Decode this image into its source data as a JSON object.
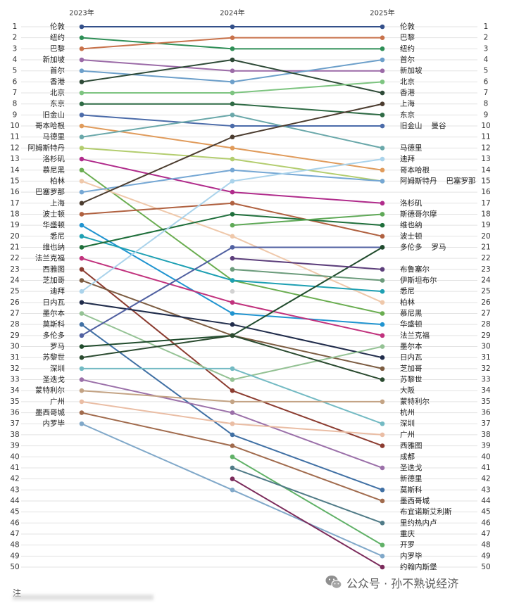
{
  "chart_data": {
    "type": "line",
    "x": [
      "2023年",
      "2024年",
      "2025年"
    ],
    "ranks": [
      1,
      2,
      3,
      4,
      5,
      6,
      7,
      8,
      9,
      10,
      11,
      12,
      13,
      14,
      15,
      16,
      17,
      18,
      19,
      20,
      21,
      22,
      23,
      24,
      25,
      26,
      27,
      28,
      29,
      30,
      31,
      32,
      33,
      34,
      35,
      36,
      37,
      38,
      39,
      40,
      41,
      42,
      43,
      44,
      45,
      46,
      47,
      48,
      49,
      50
    ],
    "ylim": [
      1,
      50
    ],
    "y_inverted": true,
    "grid": true,
    "left_labels": [
      "伦敦",
      "纽约",
      "巴黎",
      "新加坡",
      "首尔",
      "香港",
      "北京",
      "东京",
      "旧金山",
      "哥本哈根",
      "马德里",
      "阿姆斯特丹",
      "洛杉矶",
      "慕尼黑",
      "柏林",
      "巴塞罗那",
      "上海",
      "波士顿",
      "华盛顿",
      "悉尼",
      "维也纳",
      "法兰克福",
      "西雅图",
      "芝加哥",
      "迪拜",
      "日内瓦",
      "墨尔本",
      "莫斯科",
      "多伦多",
      "罗马",
      "苏黎世",
      "深圳",
      "圣迭戈",
      "蒙特利尔",
      "广州",
      "墨西哥城",
      "内罗毕",
      "",
      "",
      "",
      "",
      "",
      "",
      "",
      "",
      "",
      "",
      "",
      "",
      ""
    ],
    "right_labels": [
      [
        "伦敦"
      ],
      [
        "巴黎"
      ],
      [
        "纽约"
      ],
      [
        "首尔"
      ],
      [
        "新加坡"
      ],
      [
        "北京"
      ],
      [
        "香港"
      ],
      [
        "上海"
      ],
      [
        "东京"
      ],
      [
        "旧金山",
        "曼谷"
      ],
      [],
      [
        "马德里"
      ],
      [
        "迪拜"
      ],
      [
        "哥本哈根"
      ],
      [
        "阿姆斯特丹",
        "巴塞罗那"
      ],
      [],
      [
        "洛杉矶"
      ],
      [
        "斯德哥尔摩"
      ],
      [
        "维也纳"
      ],
      [
        "波士顿"
      ],
      [
        "多伦多",
        "罗马"
      ],
      [],
      [
        "布鲁塞尔"
      ],
      [
        "伊斯坦布尔"
      ],
      [
        "悉尼"
      ],
      [
        "柏林"
      ],
      [
        "慕尼黑"
      ],
      [
        "华盛顿"
      ],
      [
        "法兰克福"
      ],
      [
        "墨尔本"
      ],
      [
        "日内瓦"
      ],
      [
        "芝加哥"
      ],
      [
        "苏黎世"
      ],
      [
        "大阪"
      ],
      [
        "蒙特利尔"
      ],
      [
        "杭州"
      ],
      [
        "深圳"
      ],
      [
        "广州"
      ],
      [
        "西雅图"
      ],
      [
        "成都"
      ],
      [
        "圣迭戈"
      ],
      [
        "新德里"
      ],
      [
        "莫斯科"
      ],
      [
        "墨西哥城"
      ],
      [
        "布宜诺斯艾利斯"
      ],
      [
        "里约热内卢"
      ],
      [
        "重庆"
      ],
      [
        "开罗"
      ],
      [
        "内罗毕"
      ],
      [
        "约翰内斯堡"
      ]
    ],
    "series": [
      {
        "name": "伦敦",
        "color": "#34508a",
        "values": [
          1,
          1,
          1
        ]
      },
      {
        "name": "纽约",
        "color": "#2f8f57",
        "values": [
          2,
          3,
          3
        ]
      },
      {
        "name": "巴黎",
        "color": "#c8724b",
        "values": [
          3,
          2,
          2
        ]
      },
      {
        "name": "新加坡",
        "color": "#9b6aa7",
        "values": [
          4,
          5,
          5
        ]
      },
      {
        "name": "首尔",
        "color": "#6c9fca",
        "values": [
          5,
          6,
          4
        ]
      },
      {
        "name": "香港",
        "color": "#2e4a37",
        "values": [
          6,
          4,
          7
        ]
      },
      {
        "name": "北京",
        "color": "#7dc480",
        "values": [
          7,
          7,
          6
        ]
      },
      {
        "name": "东京",
        "color": "#2f6b45",
        "values": [
          8,
          8,
          9
        ]
      },
      {
        "name": "旧金山",
        "color": "#4b6ba9",
        "values": [
          9,
          10,
          10
        ]
      },
      {
        "name": "哥本哈根",
        "color": "#e09b5b",
        "values": [
          10,
          12,
          14
        ]
      },
      {
        "name": "马德里",
        "color": "#6aa8aa",
        "values": [
          11,
          9,
          12
        ]
      },
      {
        "name": "阿姆斯特丹",
        "color": "#b3cd6f",
        "values": [
          12,
          13,
          15
        ]
      },
      {
        "name": "洛杉矶",
        "color": "#b02b8b",
        "values": [
          13,
          16,
          17
        ]
      },
      {
        "name": "慕尼黑",
        "color": "#6aad50",
        "values": [
          14,
          24,
          27
        ]
      },
      {
        "name": "柏林",
        "color": "#efc8aa",
        "values": [
          15,
          20,
          26
        ]
      },
      {
        "name": "巴塞罗那",
        "color": "#75a7d4",
        "values": [
          16,
          14,
          15
        ]
      },
      {
        "name": "上海",
        "color": "#4b3c2f",
        "values": [
          17,
          11,
          8
        ]
      },
      {
        "name": "波士顿",
        "color": "#b06140",
        "values": [
          18,
          17,
          20
        ]
      },
      {
        "name": "华盛顿",
        "color": "#2094d0",
        "values": [
          19,
          27,
          28
        ]
      },
      {
        "name": "悉尼",
        "color": "#1ea0b3",
        "values": [
          20,
          24,
          25
        ]
      },
      {
        "name": "维也纳",
        "color": "#1f6f3b",
        "values": [
          21,
          18,
          19
        ]
      },
      {
        "name": "法兰克福",
        "color": "#c1327d",
        "values": [
          22,
          26,
          29
        ]
      },
      {
        "name": "西雅图",
        "color": "#8c3c30",
        "values": [
          23,
          34,
          39
        ]
      },
      {
        "name": "芝加哥",
        "color": "#7c5c41",
        "values": [
          24,
          29,
          32
        ]
      },
      {
        "name": "迪拜",
        "color": "#aad3eb",
        "values": [
          25,
          15,
          13
        ]
      },
      {
        "name": "日内瓦",
        "color": "#202c4b",
        "values": [
          26,
          28,
          31
        ]
      },
      {
        "name": "墨尔本",
        "color": "#94c294",
        "values": [
          27,
          33,
          30
        ]
      },
      {
        "name": "莫斯科",
        "color": "#4070a4",
        "values": [
          28,
          38,
          43
        ]
      },
      {
        "name": "多伦多",
        "color": "#5060a1",
        "values": [
          29,
          21,
          21
        ]
      },
      {
        "name": "罗马",
        "color": "#204b2c",
        "values": [
          30,
          29,
          21
        ]
      },
      {
        "name": "苏黎世",
        "color": "#2b4b30",
        "values": [
          31,
          29,
          33
        ]
      },
      {
        "name": "深圳",
        "color": "#73bac3",
        "values": [
          32,
          32,
          37
        ]
      },
      {
        "name": "圣迭戈",
        "color": "#9b70a9",
        "values": [
          33,
          36,
          41
        ]
      },
      {
        "name": "蒙特利尔",
        "color": "#c3a384",
        "values": [
          34,
          35,
          35
        ]
      },
      {
        "name": "广州",
        "color": "#eabda4",
        "values": [
          35,
          37,
          38
        ]
      },
      {
        "name": "墨西哥城",
        "color": "#a16b4d",
        "values": [
          36,
          39,
          44
        ]
      },
      {
        "name": "内罗毕",
        "color": "#80a8c9",
        "values": [
          37,
          43,
          49
        ]
      },
      {
        "name": "斯德哥尔摩",
        "color": "#5fa957",
        "values": [
          null,
          19,
          18
        ]
      },
      {
        "name": "布鲁塞尔",
        "color": "#5c3e7b",
        "values": [
          null,
          22,
          23
        ]
      },
      {
        "name": "伊斯坦布尔",
        "color": "#6b9b7b",
        "values": [
          null,
          23,
          24
        ]
      },
      {
        "name": "开罗",
        "color": "#60b167",
        "values": [
          null,
          40,
          48
        ]
      },
      {
        "name": "里约热内卢",
        "color": "#507b87",
        "values": [
          null,
          41,
          46
        ]
      },
      {
        "name": "约翰内斯堡",
        "color": "#7b2b5b",
        "values": [
          null,
          42,
          50
        ]
      },
      {
        "name": "",
        "color": "#d2d2d2",
        "values": [
          null,
          25,
          null
        ]
      },
      {
        "name": "曼谷",
        "color": null,
        "values": [
          null,
          null,
          10
        ]
      },
      {
        "name": "大阪",
        "color": null,
        "values": [
          null,
          null,
          34
        ]
      },
      {
        "name": "杭州",
        "color": null,
        "values": [
          null,
          null,
          36
        ]
      },
      {
        "name": "成都",
        "color": null,
        "values": [
          null,
          null,
          40
        ]
      },
      {
        "name": "新德里",
        "color": null,
        "values": [
          null,
          null,
          42
        ]
      },
      {
        "name": "布宜诺斯艾利斯",
        "color": null,
        "values": [
          null,
          null,
          45
        ]
      },
      {
        "name": "重庆",
        "color": null,
        "values": [
          null,
          null,
          47
        ]
      }
    ]
  },
  "note": "注",
  "watermark": {
    "icon": "wechat-icon",
    "text": "公众号 · 孙不熟说经济"
  }
}
